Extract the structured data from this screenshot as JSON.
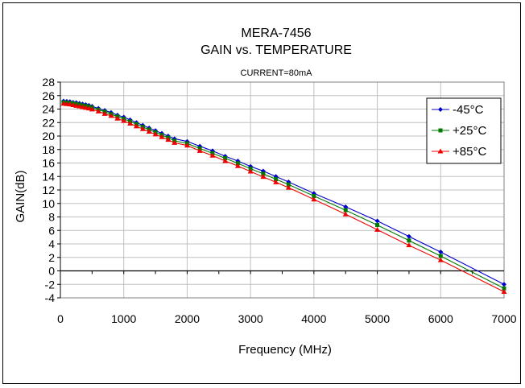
{
  "chart_data": {
    "type": "line",
    "title": "MERA-7456",
    "subtitle": "GAIN vs. TEMPERATURE",
    "annotation": "CURRENT=80mA",
    "xlabel": "Frequency (MHz)",
    "ylabel": "GAIN(dB)",
    "xlim": [
      0,
      7000
    ],
    "ylim": [
      -4,
      28
    ],
    "xticks": [
      0,
      1000,
      2000,
      3000,
      4000,
      5000,
      6000,
      7000
    ],
    "yticks": [
      -4,
      -2,
      0,
      2,
      4,
      6,
      8,
      10,
      12,
      14,
      16,
      18,
      20,
      22,
      24,
      26,
      28
    ],
    "grid": true,
    "legend_position": "top-right",
    "x": [
      50,
      100,
      150,
      200,
      250,
      300,
      350,
      400,
      450,
      500,
      600,
      700,
      800,
      900,
      1000,
      1100,
      1200,
      1300,
      1400,
      1500,
      1600,
      1700,
      1800,
      2000,
      2200,
      2400,
      2600,
      2800,
      3000,
      3200,
      3400,
      3600,
      4000,
      4500,
      5000,
      5500,
      6000,
      7000
    ],
    "series": [
      {
        "name": "-45°C",
        "color": "#0000cc",
        "marker": "diamond",
        "values": [
          25.2,
          25.15,
          25.1,
          25.0,
          24.95,
          24.85,
          24.75,
          24.65,
          24.55,
          24.4,
          24.1,
          23.8,
          23.5,
          23.1,
          22.8,
          22.4,
          22.0,
          21.6,
          21.2,
          20.8,
          20.4,
          20.0,
          19.6,
          19.2,
          18.5,
          17.8,
          17.0,
          16.3,
          15.5,
          14.8,
          14.0,
          13.2,
          11.5,
          9.5,
          7.4,
          5.1,
          2.8,
          -2.0
        ]
      },
      {
        "name": "+25°C",
        "color": "#007a00",
        "marker": "square",
        "values": [
          25.0,
          24.95,
          24.9,
          24.85,
          24.75,
          24.65,
          24.55,
          24.45,
          24.35,
          24.2,
          23.9,
          23.6,
          23.25,
          22.9,
          22.55,
          22.15,
          21.75,
          21.35,
          20.95,
          20.55,
          20.15,
          19.75,
          19.3,
          18.9,
          18.15,
          17.45,
          16.7,
          15.95,
          15.15,
          14.4,
          13.6,
          12.8,
          11.1,
          9.0,
          6.8,
          4.5,
          2.2,
          -2.6
        ]
      },
      {
        "name": "+85°C",
        "color": "#ee0000",
        "marker": "triangle",
        "values": [
          24.8,
          24.75,
          24.7,
          24.6,
          24.5,
          24.4,
          24.3,
          24.2,
          24.1,
          23.95,
          23.65,
          23.3,
          23.0,
          22.6,
          22.25,
          21.85,
          21.45,
          21.05,
          20.65,
          20.25,
          19.85,
          19.45,
          19.0,
          18.6,
          17.8,
          17.1,
          16.3,
          15.55,
          14.75,
          13.95,
          13.15,
          12.35,
          10.6,
          8.4,
          6.1,
          3.8,
          1.6,
          -3.1
        ]
      }
    ]
  }
}
